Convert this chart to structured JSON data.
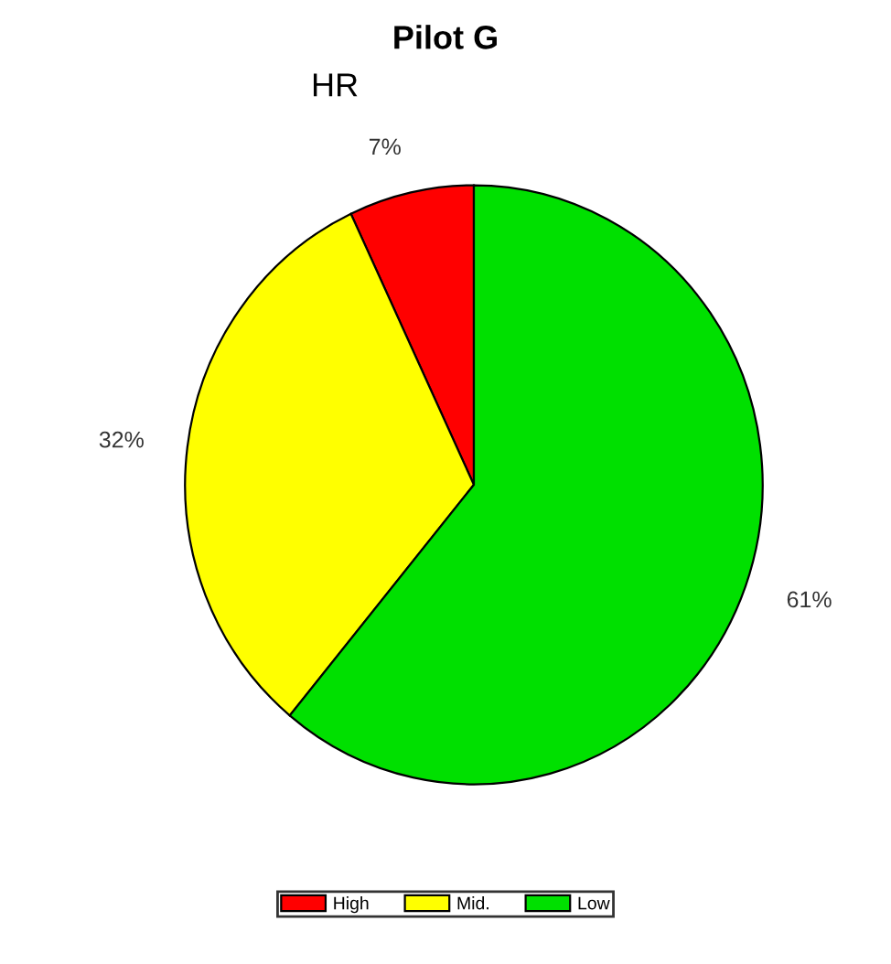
{
  "chart_data": {
    "type": "pie",
    "title": "Pilot G",
    "subtitle": "HR",
    "categories": [
      "High",
      "Mid.",
      "Low"
    ],
    "values": [
      7,
      32,
      61
    ],
    "colors": [
      "#ff0000",
      "#ffff00",
      "#00e000"
    ],
    "value_labels": [
      "7%",
      "32%",
      "61%"
    ],
    "legend": "bottom"
  }
}
